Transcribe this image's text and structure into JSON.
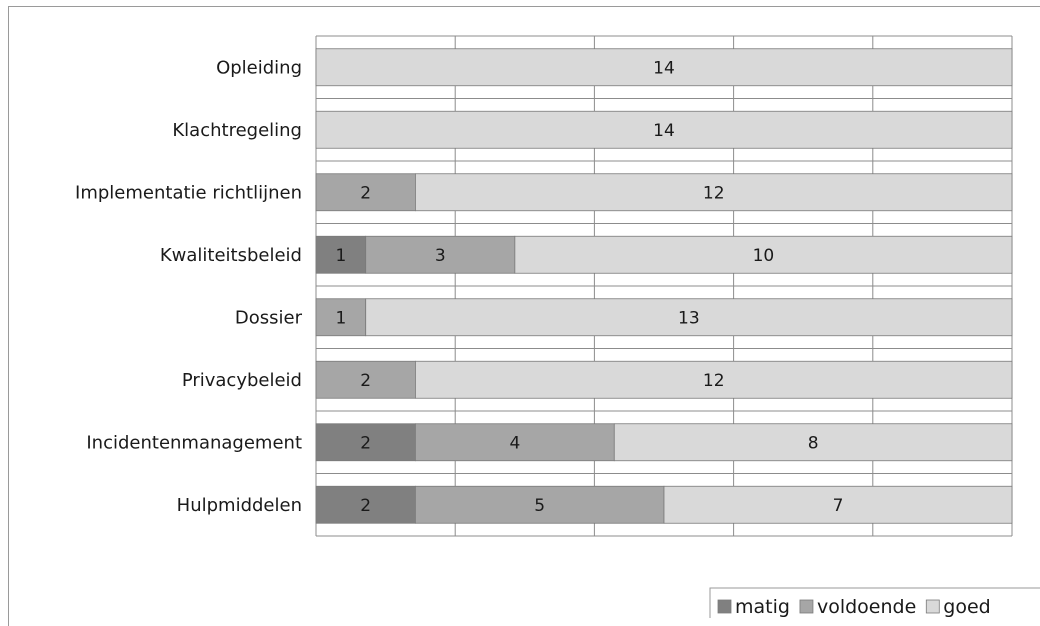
{
  "chart_data": {
    "type": "bar",
    "orientation": "horizontal",
    "stacked": true,
    "categories": [
      "Opleiding",
      "Klachtregeling",
      "Implementatie richtlijnen",
      "Kwaliteitsbeleid",
      "Dossier",
      "Privacybeleid",
      "Incidentenmanagement",
      "Hulpmiddelen"
    ],
    "series": [
      {
        "name": "matig",
        "color": "#808080",
        "values": [
          0,
          0,
          0,
          1,
          0,
          0,
          2,
          2
        ]
      },
      {
        "name": "voldoende",
        "color": "#a6a6a6",
        "values": [
          0,
          0,
          2,
          3,
          1,
          2,
          4,
          5
        ]
      },
      {
        "name": "goed",
        "color": "#d9d9d9",
        "values": [
          14,
          14,
          12,
          10,
          13,
          12,
          8,
          7
        ]
      }
    ],
    "xlim": [
      0,
      14
    ],
    "grid": true,
    "legend_position": "bottom-right",
    "title": "",
    "xlabel": "",
    "ylabel": ""
  }
}
